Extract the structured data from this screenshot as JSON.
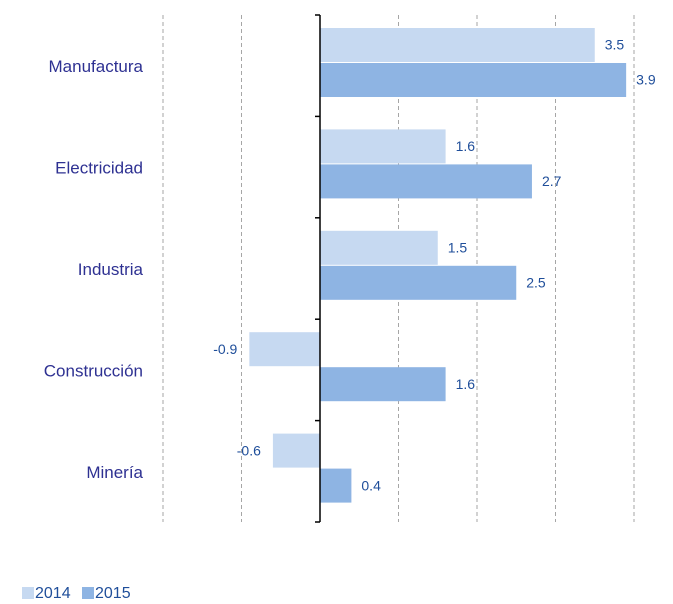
{
  "chart_data": {
    "type": "hbar",
    "categories": [
      "Manufactura",
      "Electricidad",
      "Industria",
      "Construcción",
      "Minería"
    ],
    "series": [
      {
        "name": "2014",
        "color": "#c6d9f1",
        "values": [
          3.5,
          1.6,
          1.5,
          -0.9,
          -0.6
        ]
      },
      {
        "name": "2015",
        "color": "#8eb4e3",
        "values": [
          3.9,
          2.7,
          2.5,
          1.6,
          0.4
        ]
      }
    ],
    "xlim": [
      -2,
      4
    ],
    "xticks": [
      -2,
      -1,
      0,
      1,
      2,
      3,
      4
    ],
    "grid": true,
    "legend": "bottom-left"
  }
}
